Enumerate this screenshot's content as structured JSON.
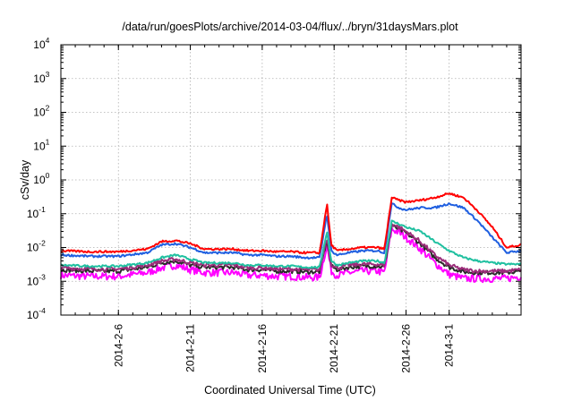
{
  "chart_data": {
    "type": "line",
    "title": "/data/run/goesPlots/archive/2014-03-04/flux/../bryn/31daysMars.plot",
    "xlabel": "Coordinated Universal Time (UTC)",
    "ylabel": "cSv/day",
    "yscale": "log",
    "ylim": [
      0.0001,
      10000
    ],
    "xlim": [
      "2014-02-02",
      "2014-03-06"
    ],
    "grid": true,
    "y_ticks": [
      {
        "base": "10",
        "exp": "4"
      },
      {
        "base": "10",
        "exp": "3"
      },
      {
        "base": "10",
        "exp": "2"
      },
      {
        "base": "10",
        "exp": "1"
      },
      {
        "base": "10",
        "exp": "0"
      },
      {
        "base": "10",
        "exp": "-1"
      },
      {
        "base": "10",
        "exp": "-2"
      },
      {
        "base": "10",
        "exp": "-3"
      },
      {
        "base": "10",
        "exp": "-4"
      }
    ],
    "x_ticks": [
      "2014-2-6",
      "2014-2-11",
      "2014-2-16",
      "2014-2-21",
      "2014-2-26",
      "2014-3-1"
    ],
    "series": [
      {
        "color": "#ff0000",
        "x": [
          0,
          2,
          4,
          6,
          7,
          8,
          9,
          10,
          11,
          12,
          13,
          14,
          15,
          16,
          17,
          18,
          18.5,
          18.8,
          19.2,
          20,
          21,
          22,
          22.5,
          23,
          23.5,
          24,
          25,
          26,
          27,
          28,
          29,
          30,
          31,
          32
        ],
        "y": [
          0.008,
          0.0075,
          0.0075,
          0.009,
          0.015,
          0.016,
          0.013,
          0.009,
          0.009,
          0.009,
          0.008,
          0.008,
          0.0075,
          0.0075,
          0.007,
          0.007,
          0.2,
          0.012,
          0.008,
          0.009,
          0.01,
          0.01,
          0.009,
          0.3,
          0.25,
          0.22,
          0.25,
          0.3,
          0.4,
          0.3,
          0.12,
          0.04,
          0.01,
          0.012
        ]
      },
      {
        "color": "#1f5fe0",
        "x": [
          0,
          2,
          4,
          6,
          7,
          8,
          9,
          10,
          11,
          12,
          13,
          14,
          15,
          16,
          17,
          18,
          18.5,
          18.8,
          19.2,
          20,
          21,
          22,
          22.5,
          23,
          23.5,
          24,
          25,
          26,
          27,
          28,
          29,
          30,
          31,
          32
        ],
        "y": [
          0.006,
          0.0055,
          0.0055,
          0.007,
          0.012,
          0.013,
          0.01,
          0.007,
          0.007,
          0.007,
          0.006,
          0.006,
          0.0055,
          0.0055,
          0.005,
          0.005,
          0.1,
          0.008,
          0.006,
          0.007,
          0.008,
          0.008,
          0.007,
          0.2,
          0.15,
          0.13,
          0.15,
          0.15,
          0.2,
          0.15,
          0.06,
          0.02,
          0.007,
          0.008
        ]
      },
      {
        "color": "#20c0a0",
        "x": [
          0,
          2,
          4,
          6,
          7,
          8,
          9,
          10,
          11,
          12,
          13,
          14,
          15,
          16,
          17,
          18,
          18.5,
          18.8,
          19.2,
          20,
          21,
          22,
          22.5,
          23,
          23.5,
          24,
          25,
          26,
          27,
          28,
          29,
          30,
          31,
          32
        ],
        "y": [
          0.003,
          0.0028,
          0.0028,
          0.0035,
          0.005,
          0.006,
          0.0045,
          0.0035,
          0.0035,
          0.0035,
          0.003,
          0.003,
          0.0028,
          0.0028,
          0.0026,
          0.0026,
          0.03,
          0.004,
          0.003,
          0.0035,
          0.004,
          0.004,
          0.0035,
          0.06,
          0.05,
          0.04,
          0.03,
          0.015,
          0.008,
          0.005,
          0.004,
          0.0035,
          0.0032,
          0.0032
        ]
      },
      {
        "color": "#9b2d7a",
        "x": [
          0,
          2,
          4,
          6,
          7,
          8,
          9,
          10,
          11,
          12,
          13,
          14,
          15,
          16,
          17,
          18,
          18.5,
          18.8,
          19.2,
          20,
          21,
          22,
          22.5,
          23,
          23.5,
          24,
          25,
          26,
          27,
          28,
          29,
          30,
          31,
          32
        ],
        "y": [
          0.0025,
          0.0023,
          0.0023,
          0.003,
          0.004,
          0.0045,
          0.0035,
          0.003,
          0.003,
          0.003,
          0.0025,
          0.0025,
          0.0023,
          0.0023,
          0.0022,
          0.0022,
          0.02,
          0.0032,
          0.0025,
          0.003,
          0.0032,
          0.0032,
          0.003,
          0.05,
          0.04,
          0.03,
          0.015,
          0.006,
          0.003,
          0.0022,
          0.002,
          0.002,
          0.002,
          0.0022
        ]
      },
      {
        "color": "#2a2a2a",
        "x": [
          0,
          2,
          4,
          6,
          7,
          8,
          9,
          10,
          11,
          12,
          13,
          14,
          15,
          16,
          17,
          18,
          18.5,
          18.8,
          19.2,
          20,
          21,
          22,
          22.5,
          23,
          23.5,
          24,
          25,
          26,
          27,
          28,
          29,
          30,
          31,
          32
        ],
        "y": [
          0.0022,
          0.002,
          0.002,
          0.0026,
          0.0035,
          0.004,
          0.003,
          0.0026,
          0.0026,
          0.0026,
          0.0022,
          0.0022,
          0.002,
          0.002,
          0.0019,
          0.0019,
          0.017,
          0.0028,
          0.0022,
          0.0026,
          0.0028,
          0.0028,
          0.0026,
          0.045,
          0.035,
          0.027,
          0.013,
          0.005,
          0.0026,
          0.0019,
          0.0018,
          0.0018,
          0.0018,
          0.002
        ]
      },
      {
        "color": "#ff00ff",
        "x": [
          0,
          2,
          4,
          6,
          7,
          8,
          9,
          10,
          11,
          12,
          13,
          14,
          15,
          16,
          17,
          18,
          18.5,
          18.8,
          19.2,
          20,
          21,
          22,
          22.5,
          23,
          23.5,
          24,
          25,
          26,
          27,
          28,
          29,
          30,
          31,
          32
        ],
        "y": [
          0.0015,
          0.0014,
          0.0014,
          0.0018,
          0.0025,
          0.003,
          0.0022,
          0.0018,
          0.0018,
          0.0018,
          0.0015,
          0.0015,
          0.0014,
          0.0014,
          0.0013,
          0.0013,
          0.012,
          0.002,
          0.0015,
          0.0018,
          0.002,
          0.002,
          0.0018,
          0.035,
          0.028,
          0.02,
          0.009,
          0.0035,
          0.0016,
          0.0012,
          0.0012,
          0.0012,
          0.0012,
          0.0014
        ]
      }
    ]
  }
}
